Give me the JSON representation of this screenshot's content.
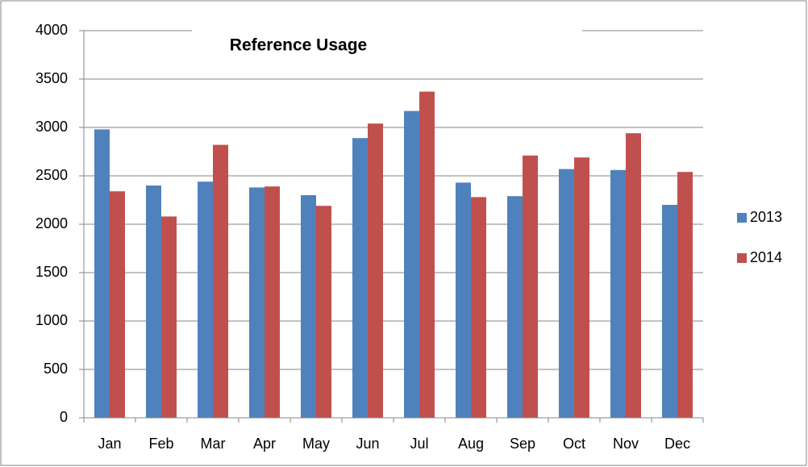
{
  "chart_data": {
    "type": "bar",
    "title": "Reference Usage",
    "categories": [
      "Jan",
      "Feb",
      "Mar",
      "Apr",
      "May",
      "Jun",
      "Jul",
      "Aug",
      "Sep",
      "Oct",
      "Nov",
      "Dec"
    ],
    "series": [
      {
        "name": "2013",
        "color": "#4f81bd",
        "values": [
          2980,
          2400,
          2440,
          2380,
          2300,
          2890,
          3170,
          2430,
          2290,
          2570,
          2560,
          2200
        ]
      },
      {
        "name": "2014",
        "color": "#c0504d",
        "values": [
          2340,
          2080,
          2820,
          2390,
          2190,
          3040,
          3370,
          2280,
          2710,
          2690,
          2940,
          2540
        ]
      }
    ],
    "ylim": [
      0,
      4000
    ],
    "yticks": [
      0,
      500,
      1000,
      1500,
      2000,
      2500,
      3000,
      3500,
      4000
    ],
    "grid": true,
    "legend": "right"
  }
}
